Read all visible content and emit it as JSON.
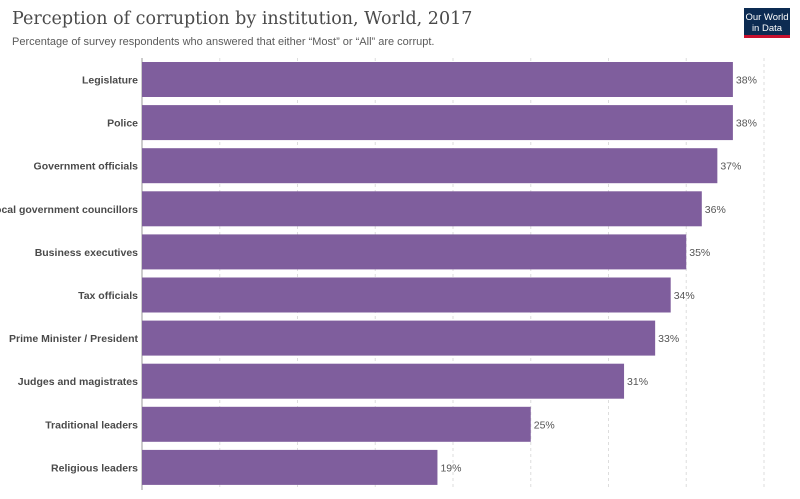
{
  "header": {
    "title": "Perception of corruption by institution, World, 2017",
    "subtitle": "Percentage of survey respondents who answered that either “Most” or “All” are corrupt.",
    "logo_line1": "Our World",
    "logo_line2": "in Data"
  },
  "colors": {
    "bar": "#7f5e9d",
    "grid": "#dddddd",
    "logo_bg": "#0c2b52",
    "logo_accent": "#c8102e"
  },
  "chart_data": {
    "type": "bar",
    "orientation": "horizontal",
    "categories": [
      "Legislature",
      "Police",
      "Government officials",
      "Local government councillors",
      "Business executives",
      "Tax officials",
      "Prime Minister / President",
      "Judges and magistrates",
      "Traditional leaders",
      "Religious leaders"
    ],
    "values": [
      38,
      38,
      37,
      36,
      35,
      34,
      33,
      31,
      25,
      19
    ],
    "value_labels": [
      "38%",
      "38%",
      "37%",
      "36%",
      "35%",
      "34%",
      "33%",
      "31%",
      "25%",
      "19%"
    ],
    "xlim": [
      0,
      40
    ],
    "grid": true,
    "legend": "none"
  }
}
